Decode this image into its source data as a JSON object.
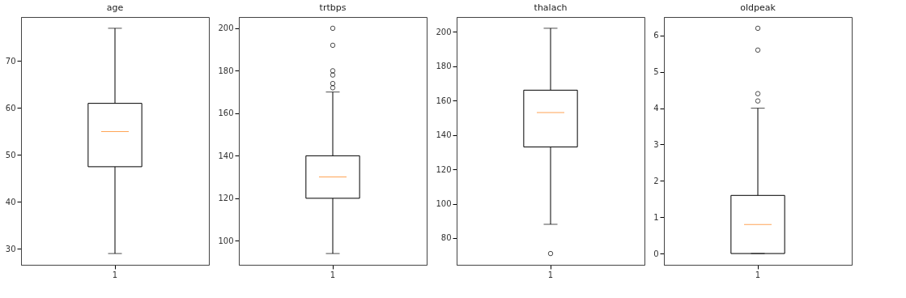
{
  "chart_data": [
    {
      "type": "box",
      "title": "age",
      "categories": [
        "1"
      ],
      "boxes": [
        {
          "low": 29,
          "q1": 47.5,
          "median": 55,
          "q3": 61,
          "high": 77
        }
      ],
      "ylim": [
        26.6,
        79.4
      ],
      "yticks": [
        30,
        40,
        50,
        60,
        70
      ],
      "grid": false
    },
    {
      "type": "box",
      "title": "trtbps",
      "categories": [
        "1"
      ],
      "boxes": [
        {
          "low": 94,
          "q1": 120,
          "median": 130,
          "q3": 140,
          "high": 170,
          "outliers": [
            172,
            174,
            178,
            180,
            192,
            200
          ]
        }
      ],
      "ylim": [
        88.7,
        205.3
      ],
      "yticks": [
        100,
        120,
        140,
        160,
        180,
        200
      ],
      "grid": false
    },
    {
      "type": "box",
      "title": "thalach",
      "categories": [
        "1"
      ],
      "boxes": [
        {
          "low": 88,
          "q1": 133,
          "median": 153,
          "q3": 166,
          "high": 202,
          "outliers": [
            71
          ]
        }
      ],
      "ylim": [
        64.45,
        208.55
      ],
      "yticks": [
        80,
        100,
        120,
        140,
        160,
        180,
        200
      ],
      "grid": false
    },
    {
      "type": "box",
      "title": "oldpeak",
      "categories": [
        "1"
      ],
      "boxes": [
        {
          "low": 0,
          "q1": 0,
          "median": 0.8,
          "q3": 1.6,
          "high": 4,
          "outliers": [
            4.2,
            4.4,
            5.6,
            6.2
          ]
        }
      ],
      "ylim": [
        -0.31,
        6.51
      ],
      "yticks": [
        0,
        1,
        2,
        3,
        4,
        5,
        6
      ],
      "grid": false
    }
  ]
}
